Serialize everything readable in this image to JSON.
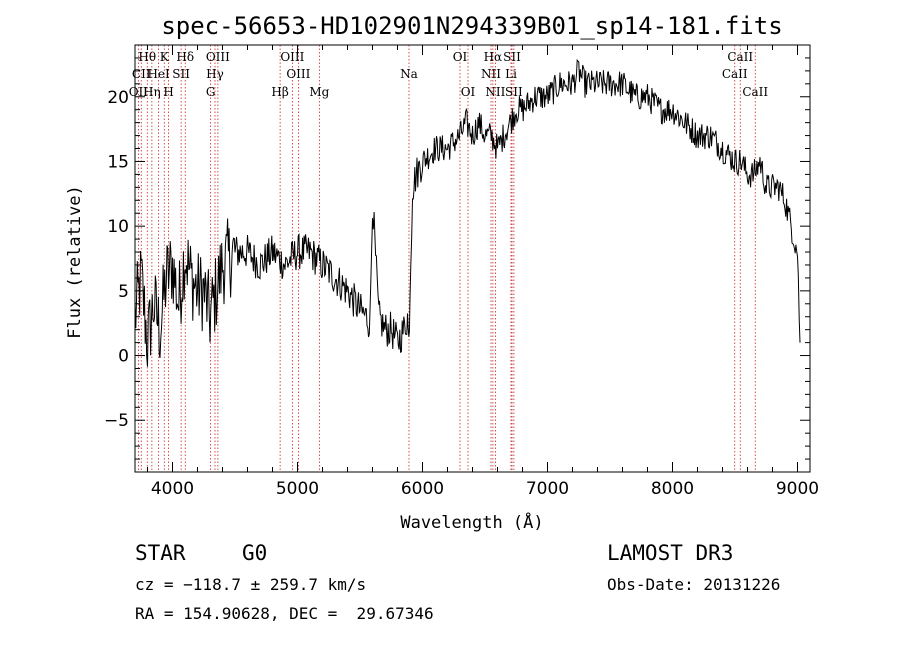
{
  "chart_data": {
    "type": "line",
    "title": "spec-56653-HD102901N294339B01_sp14-181.fits",
    "xlabel": "Wavelength (Å)",
    "ylabel": "Flux (relative)",
    "xlim": [
      3700,
      9100
    ],
    "ylim": [
      -9,
      24
    ],
    "xticks": [
      4000,
      5000,
      6000,
      7000,
      8000,
      9000
    ],
    "yticks": [
      -5,
      0,
      5,
      10,
      15,
      20
    ],
    "series": [
      {
        "name": "spectrum",
        "x": [
          3700,
          3750,
          3800,
          3850,
          3900,
          3950,
          4000,
          4050,
          4100,
          4150,
          4200,
          4250,
          4300,
          4350,
          4400,
          4500,
          4600,
          4700,
          4800,
          4900,
          5000,
          5100,
          5200,
          5300,
          5400,
          5500,
          5550,
          5580,
          5600,
          5650,
          5700,
          5750,
          5800,
          5850,
          5880,
          5890,
          5900,
          5920,
          5950,
          6000,
          6100,
          6200,
          6300,
          6350,
          6400,
          6450,
          6500,
          6550,
          6600,
          6650,
          6700,
          6750,
          6800,
          6900,
          7000,
          7100,
          7200,
          7250,
          7300,
          7400,
          7500,
          7600,
          7700,
          7800,
          7900,
          8000,
          8100,
          8200,
          8300,
          8400,
          8500,
          8550,
          8600,
          8650,
          8700,
          8750,
          8800,
          8850,
          8900,
          8950,
          9000,
          9020
        ],
        "values": [
          3,
          6,
          1,
          4,
          2,
          6,
          7,
          4,
          8,
          6,
          5,
          5,
          3,
          5,
          7,
          8,
          8,
          7,
          8,
          7,
          8,
          8,
          7,
          6,
          5,
          3.5,
          3,
          2.5,
          12,
          3,
          2,
          2,
          1,
          2,
          3,
          1,
          5,
          13,
          14,
          15,
          16,
          16,
          17,
          18,
          17,
          18,
          17,
          17,
          16,
          17,
          18,
          19,
          19,
          20,
          20,
          21,
          21,
          22,
          21,
          21,
          21,
          21,
          20,
          20,
          19,
          19,
          18,
          17,
          17,
          16,
          15,
          15,
          14,
          14,
          15,
          13,
          13,
          13,
          12,
          10,
          8,
          1
        ]
      }
    ],
    "spectral_lines": [
      {
        "label": "Hθ",
        "x": 3798,
        "row": 1
      },
      {
        "label": "K",
        "x": 3934,
        "row": 1
      },
      {
        "label": "Hδ",
        "x": 4102,
        "row": 1
      },
      {
        "label": "OIII",
        "x": 4363,
        "row": 1
      },
      {
        "label": "OIII",
        "x": 4959,
        "row": 1
      },
      {
        "label": "OI",
        "x": 6300,
        "row": 1
      },
      {
        "label": "Hα",
        "x": 6563,
        "row": 1
      },
      {
        "label": "SII",
        "x": 6716,
        "row": 1
      },
      {
        "label": "CaII",
        "x": 8542,
        "row": 1
      },
      {
        "label": "CII",
        "x": 3750,
        "row": 2
      },
      {
        "label": "HeI",
        "x": 3889,
        "row": 2
      },
      {
        "label": "SII",
        "x": 4069,
        "row": 2
      },
      {
        "label": "Hγ",
        "x": 4340,
        "row": 2
      },
      {
        "label": "OIII",
        "x": 5007,
        "row": 2
      },
      {
        "label": "Na",
        "x": 5892,
        "row": 2
      },
      {
        "label": "NII",
        "x": 6548,
        "row": 2
      },
      {
        "label": "Li",
        "x": 6708,
        "row": 2
      },
      {
        "label": "CaII",
        "x": 8498,
        "row": 2
      },
      {
        "label": "OII",
        "x": 3727,
        "row": 3
      },
      {
        "label": "Hη",
        "x": 3835,
        "row": 3
      },
      {
        "label": "H",
        "x": 3969,
        "row": 3
      },
      {
        "label": "G",
        "x": 4305,
        "row": 3
      },
      {
        "label": "Hβ",
        "x": 4861,
        "row": 3
      },
      {
        "label": "Mg",
        "x": 5175,
        "row": 3
      },
      {
        "label": "OI",
        "x": 6364,
        "row": 3
      },
      {
        "label": "NII",
        "x": 6583,
        "row": 3
      },
      {
        "label": "SII",
        "x": 6731,
        "row": 3
      },
      {
        "label": "CaII",
        "x": 8662,
        "row": 3
      }
    ]
  },
  "info": {
    "object_class": "STAR",
    "subclass": "G0",
    "survey": "LAMOST DR3",
    "cz": "cz = −118.7 ± 259.7 km/s",
    "obs_date": "Obs-Date: 20131226",
    "coords": "RA = 154.90628, DEC =  29.67346"
  },
  "colors": {
    "line_marker": "#cc2222",
    "spectrum": "#000000"
  }
}
